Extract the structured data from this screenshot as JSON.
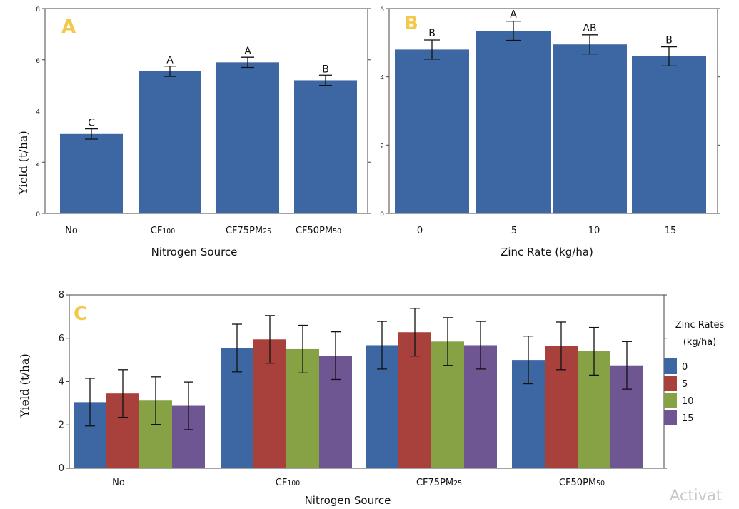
{
  "watermark": "Activat",
  "colors": {
    "bar": "#3d67a3",
    "frame": "#444444",
    "panel_label": "#f2c94c"
  },
  "chart_data": [
    {
      "type": "bar",
      "panel": "A",
      "categories": [
        "No",
        "CF100",
        "CF75PM25",
        "CF50PM50"
      ],
      "category_subscripts": [
        [
          "No",
          ""
        ],
        [
          "CF",
          "100"
        ],
        [
          "CF75PM",
          "25"
        ],
        [
          "CF50PM",
          "50"
        ]
      ],
      "values": [
        3.1,
        5.55,
        5.9,
        5.2
      ],
      "errors": [
        0.2,
        0.2,
        0.2,
        0.2
      ],
      "letters": [
        "C",
        "A",
        "A",
        "B"
      ],
      "xlabel": "Nitrogen Source",
      "ylabel": "Yield (t/ha)",
      "ylim": [
        0,
        8
      ],
      "yticks": [
        0,
        2,
        4,
        6,
        8
      ],
      "grid": false
    },
    {
      "type": "bar",
      "panel": "B",
      "categories": [
        "0",
        "5",
        "10",
        "15"
      ],
      "values": [
        4.8,
        5.35,
        4.95,
        4.6
      ],
      "errors": [
        0.28,
        0.28,
        0.28,
        0.28
      ],
      "letters": [
        "B",
        "A",
        "AB",
        "B"
      ],
      "xlabel": "Zinc Rate (kg/ha)",
      "ylabel": "",
      "ylim": [
        0,
        6
      ],
      "yticks": [
        0,
        2,
        4,
        6
      ],
      "grid": false
    },
    {
      "type": "bar",
      "panel": "C",
      "categories": [
        "No",
        "CF100",
        "CF75PM25",
        "CF50PM50"
      ],
      "category_subscripts": [
        [
          "No",
          ""
        ],
        [
          "CF",
          "100"
        ],
        [
          "CF75PM",
          "25"
        ],
        [
          "CF50PM",
          "50"
        ]
      ],
      "series": [
        {
          "name": "0",
          "color": "#3d67a3",
          "values": [
            3.05,
            5.55,
            5.68,
            5.0
          ],
          "errors": [
            1.1,
            1.1,
            1.1,
            1.1
          ]
        },
        {
          "name": "5",
          "color": "#a8403b",
          "values": [
            3.45,
            5.95,
            6.28,
            5.65
          ],
          "errors": [
            1.1,
            1.1,
            1.1,
            1.1
          ]
        },
        {
          "name": "10",
          "color": "#86a245",
          "values": [
            3.12,
            5.5,
            5.85,
            5.4
          ],
          "errors": [
            1.1,
            1.1,
            1.1,
            1.1
          ]
        },
        {
          "name": "15",
          "color": "#6e5693",
          "values": [
            2.88,
            5.2,
            5.68,
            4.75
          ],
          "errors": [
            1.1,
            1.1,
            1.1,
            1.1
          ]
        }
      ],
      "xlabel": "Nitrogen Source",
      "ylabel": "Yield (t/ha)",
      "legend_title": [
        "Zinc Rates",
        "(kg/ha)"
      ],
      "legend_position": "right",
      "ylim": [
        0,
        8
      ],
      "yticks": [
        0,
        2,
        4,
        6,
        8
      ],
      "grid": false
    }
  ]
}
